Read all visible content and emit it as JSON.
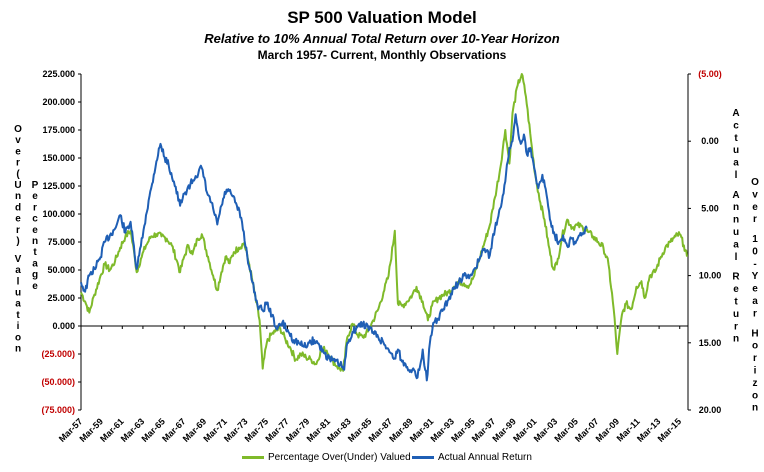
{
  "chart_data": {
    "type": "line",
    "title": "SP 500 Valuation Model",
    "subtitle": "Relative to 10% Annual Total Return over 10-Year Horizon",
    "subtitle2": "March 1957- Current, Monthly Observations",
    "left_axis_label": "Over(Under) Valuation",
    "left_axis_label2": "Percentage",
    "right_axis_label": "Actual Annual Return",
    "right_axis_label2": "Over 10-Year Horizon",
    "left_ylim": [
      -75000,
      225000
    ],
    "right_ylim_inverted": [
      -5,
      20
    ],
    "left_ticks": [
      "225.000",
      "200.000",
      "175.000",
      "150.000",
      "125.000",
      "100.000",
      "75.000",
      "50.000",
      "25.000",
      "0.000",
      "(25.000)",
      "(50.000)",
      "(75.000)"
    ],
    "right_ticks": [
      "(5.00)",
      "0.00",
      "5.00",
      "10.00",
      "15.00",
      "20.00"
    ],
    "x_ticks": [
      "Mar-57",
      "Mar-59",
      "Mar-61",
      "Mar-63",
      "Mar-65",
      "Mar-67",
      "Mar-69",
      "Mar-71",
      "Mar-73",
      "Mar-75",
      "Mar-77",
      "Mar-79",
      "Mar-81",
      "Mar-83",
      "Mar-85",
      "Mar-87",
      "Mar-89",
      "Mar-91",
      "Mar-93",
      "Mar-95",
      "Mar-97",
      "Mar-99",
      "Mar-01",
      "Mar-03",
      "Mar-05",
      "Mar-07",
      "Mar-09",
      "Mar-11",
      "Mar-13",
      "Mar-15"
    ],
    "series": [
      {
        "name": "Percentage Over(Under) Valued",
        "axis": "left",
        "color": "#7fba2a",
        "points": [
          [
            1957.2,
            30
          ],
          [
            1957.6,
            22
          ],
          [
            1958.0,
            12
          ],
          [
            1958.5,
            28
          ],
          [
            1959.0,
            42
          ],
          [
            1959.5,
            55
          ],
          [
            1960.0,
            50
          ],
          [
            1960.5,
            58
          ],
          [
            1961.0,
            70
          ],
          [
            1961.5,
            80
          ],
          [
            1962.0,
            85
          ],
          [
            1962.4,
            62
          ],
          [
            1962.6,
            48
          ],
          [
            1963.0,
            60
          ],
          [
            1963.5,
            72
          ],
          [
            1964.0,
            80
          ],
          [
            1964.5,
            82
          ],
          [
            1965.0,
            80
          ],
          [
            1965.5,
            78
          ],
          [
            1966.0,
            72
          ],
          [
            1966.5,
            58
          ],
          [
            1966.8,
            48
          ],
          [
            1967.2,
            62
          ],
          [
            1967.6,
            72
          ],
          [
            1968.0,
            64
          ],
          [
            1968.5,
            78
          ],
          [
            1968.9,
            82
          ],
          [
            1969.5,
            62
          ],
          [
            1970.0,
            45
          ],
          [
            1970.4,
            32
          ],
          [
            1970.8,
            48
          ],
          [
            1971.2,
            62
          ],
          [
            1971.6,
            56
          ],
          [
            1972.0,
            66
          ],
          [
            1972.5,
            70
          ],
          [
            1973.0,
            74
          ],
          [
            1973.5,
            55
          ],
          [
            1974.0,
            30
          ],
          [
            1974.5,
            5
          ],
          [
            1974.8,
            -38
          ],
          [
            1975.2,
            -15
          ],
          [
            1975.6,
            -8
          ],
          [
            1976.0,
            -5
          ],
          [
            1976.5,
            -2
          ],
          [
            1977.0,
            -12
          ],
          [
            1977.5,
            -20
          ],
          [
            1978.0,
            -30
          ],
          [
            1978.5,
            -25
          ],
          [
            1979.0,
            -28
          ],
          [
            1979.5,
            -30
          ],
          [
            1980.0,
            -34
          ],
          [
            1980.5,
            -20
          ],
          [
            1981.0,
            -22
          ],
          [
            1981.5,
            -30
          ],
          [
            1982.0,
            -36
          ],
          [
            1982.6,
            -40
          ],
          [
            1983.0,
            -10
          ],
          [
            1983.5,
            2
          ],
          [
            1984.0,
            -8
          ],
          [
            1984.5,
            -10
          ],
          [
            1985.0,
            -5
          ],
          [
            1985.5,
            5
          ],
          [
            1986.0,
            15
          ],
          [
            1986.5,
            30
          ],
          [
            1987.0,
            45
          ],
          [
            1987.6,
            85
          ],
          [
            1987.9,
            20
          ],
          [
            1988.3,
            18
          ],
          [
            1988.8,
            22
          ],
          [
            1989.3,
            28
          ],
          [
            1989.7,
            35
          ],
          [
            1990.3,
            22
          ],
          [
            1990.8,
            5
          ],
          [
            1991.2,
            18
          ],
          [
            1991.8,
            25
          ],
          [
            1992.3,
            28
          ],
          [
            1992.8,
            30
          ],
          [
            1993.3,
            35
          ],
          [
            1993.8,
            40
          ],
          [
            1994.3,
            38
          ],
          [
            1994.8,
            36
          ],
          [
            1995.3,
            45
          ],
          [
            1995.8,
            60
          ],
          [
            1996.3,
            75
          ],
          [
            1996.8,
            90
          ],
          [
            1997.3,
            115
          ],
          [
            1997.8,
            140
          ],
          [
            1998.3,
            175
          ],
          [
            1998.7,
            145
          ],
          [
            1999.0,
            190
          ],
          [
            1999.5,
            215
          ],
          [
            1999.9,
            225
          ],
          [
            2000.3,
            205
          ],
          [
            2000.8,
            165
          ],
          [
            2001.2,
            135
          ],
          [
            2001.7,
            110
          ],
          [
            2002.1,
            95
          ],
          [
            2002.5,
            72
          ],
          [
            2002.9,
            52
          ],
          [
            2003.3,
            55
          ],
          [
            2003.8,
            80
          ],
          [
            2004.3,
            95
          ],
          [
            2004.8,
            88
          ],
          [
            2005.3,
            90
          ],
          [
            2005.8,
            88
          ],
          [
            2006.3,
            84
          ],
          [
            2006.8,
            80
          ],
          [
            2007.3,
            75
          ],
          [
            2007.8,
            70
          ],
          [
            2008.3,
            55
          ],
          [
            2008.8,
            15
          ],
          [
            2009.15,
            -25
          ],
          [
            2009.6,
            10
          ],
          [
            2010.0,
            20
          ],
          [
            2010.5,
            15
          ],
          [
            2011.0,
            35
          ],
          [
            2011.5,
            40
          ],
          [
            2011.8,
            25
          ],
          [
            2012.3,
            45
          ],
          [
            2012.8,
            48
          ],
          [
            2013.3,
            60
          ],
          [
            2013.8,
            70
          ],
          [
            2014.3,
            75
          ],
          [
            2014.8,
            80
          ],
          [
            2015.2,
            82
          ],
          [
            2015.6,
            72
          ],
          [
            2015.9,
            62
          ]
        ]
      },
      {
        "name": "Actual Annual Return",
        "axis": "right",
        "color": "#1f5fb5",
        "points": [
          [
            1957.2,
            10.5
          ],
          [
            1957.6,
            11.2
          ],
          [
            1958.0,
            10.0
          ],
          [
            1958.5,
            9.5
          ],
          [
            1959.0,
            8.8
          ],
          [
            1959.5,
            7.5
          ],
          [
            1960.0,
            7.0
          ],
          [
            1960.5,
            6.5
          ],
          [
            1961.0,
            5.5
          ],
          [
            1961.5,
            6.8
          ],
          [
            1962.0,
            6.0
          ],
          [
            1962.4,
            8.5
          ],
          [
            1962.6,
            9.5
          ],
          [
            1963.0,
            7.8
          ],
          [
            1963.5,
            5.5
          ],
          [
            1964.0,
            3.5
          ],
          [
            1964.5,
            1.5
          ],
          [
            1964.9,
            0.2
          ],
          [
            1965.3,
            1.2
          ],
          [
            1965.7,
            1.8
          ],
          [
            1966.2,
            3.0
          ],
          [
            1966.8,
            4.8
          ],
          [
            1967.3,
            3.8
          ],
          [
            1967.8,
            3.2
          ],
          [
            1968.3,
            2.6
          ],
          [
            1968.9,
            2.0
          ],
          [
            1969.4,
            3.8
          ],
          [
            1970.0,
            5.0
          ],
          [
            1970.4,
            6.2
          ],
          [
            1970.8,
            4.8
          ],
          [
            1971.3,
            3.6
          ],
          [
            1971.8,
            4.0
          ],
          [
            1972.3,
            4.8
          ],
          [
            1972.8,
            6.0
          ],
          [
            1973.3,
            8.5
          ],
          [
            1973.8,
            10.5
          ],
          [
            1974.3,
            12.2
          ],
          [
            1974.8,
            12.6
          ],
          [
            1975.2,
            12.0
          ],
          [
            1975.7,
            13.0
          ],
          [
            1976.2,
            14.0
          ],
          [
            1976.7,
            13.5
          ],
          [
            1977.3,
            14.2
          ],
          [
            1977.8,
            14.8
          ],
          [
            1978.3,
            15.0
          ],
          [
            1978.8,
            15.3
          ],
          [
            1979.3,
            15.0
          ],
          [
            1979.8,
            14.8
          ],
          [
            1980.3,
            15.2
          ],
          [
            1980.8,
            15.8
          ],
          [
            1981.3,
            16.2
          ],
          [
            1981.8,
            16.4
          ],
          [
            1982.3,
            16.6
          ],
          [
            1982.7,
            17.0
          ],
          [
            1983.0,
            15.0
          ],
          [
            1983.5,
            14.2
          ],
          [
            1984.0,
            13.8
          ],
          [
            1984.5,
            13.6
          ],
          [
            1985.0,
            13.8
          ],
          [
            1985.5,
            14.2
          ],
          [
            1986.0,
            14.6
          ],
          [
            1986.5,
            15.0
          ],
          [
            1987.0,
            15.5
          ],
          [
            1987.5,
            16.2
          ],
          [
            1987.9,
            15.5
          ],
          [
            1988.3,
            16.4
          ],
          [
            1988.8,
            16.8
          ],
          [
            1989.3,
            17.0
          ],
          [
            1989.8,
            17.6
          ],
          [
            1990.3,
            15.5
          ],
          [
            1990.7,
            17.8
          ],
          [
            1991.0,
            15.0
          ],
          [
            1991.4,
            13.5
          ],
          [
            1991.8,
            13.2
          ],
          [
            1992.3,
            12.5
          ],
          [
            1992.8,
            11.8
          ],
          [
            1993.3,
            11.0
          ],
          [
            1993.8,
            10.5
          ],
          [
            1994.3,
            10.0
          ],
          [
            1994.8,
            10.2
          ],
          [
            1995.3,
            9.5
          ],
          [
            1995.8,
            8.8
          ],
          [
            1996.3,
            8.0
          ],
          [
            1996.8,
            8.5
          ],
          [
            1997.3,
            6.5
          ],
          [
            1997.8,
            5.0
          ],
          [
            1998.3,
            3.0
          ],
          [
            1998.7,
            0.5
          ],
          [
            1999.0,
            0.0
          ],
          [
            1999.3,
            -2.0
          ],
          [
            1999.5,
            -1.0
          ],
          [
            1999.8,
            0.2
          ],
          [
            2000.1,
            -0.5
          ],
          [
            2000.4,
            1.0
          ],
          [
            2000.7,
            0.5
          ],
          [
            2001.1,
            2.0
          ],
          [
            2001.5,
            3.5
          ],
          [
            2001.9,
            2.5
          ],
          [
            2002.3,
            4.0
          ],
          [
            2002.7,
            6.0
          ],
          [
            2003.1,
            7.0
          ],
          [
            2003.5,
            7.5
          ],
          [
            2003.9,
            7.0
          ],
          [
            2004.3,
            7.8
          ],
          [
            2004.7,
            7.2
          ],
          [
            2005.1,
            7.6
          ],
          [
            2005.5,
            7.0
          ],
          [
            2005.9,
            6.8
          ],
          [
            2006.2,
            6.5
          ]
        ]
      }
    ]
  },
  "legend": {
    "item1": "Percentage Over(Under) Valued",
    "item2": "Actual Annual Return"
  },
  "colors": {
    "green": "#7fba2a",
    "blue": "#1f5fb5",
    "red_tick": "#c00000"
  }
}
